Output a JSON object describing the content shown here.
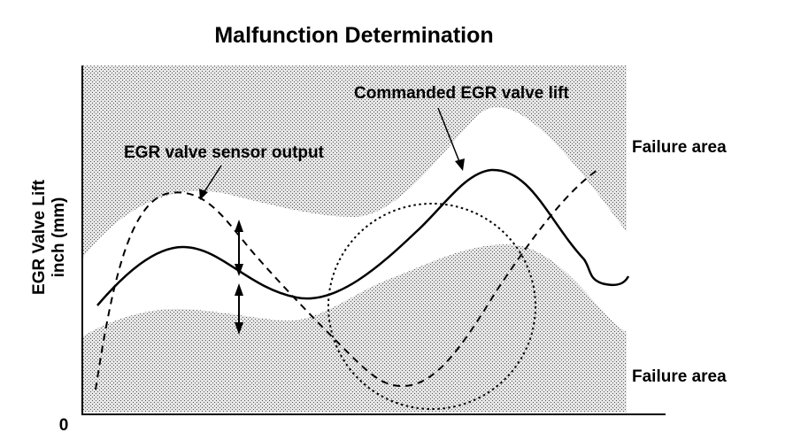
{
  "title": "Malfunction Determination",
  "y_axis": {
    "label_line1": "EGR Valve Lift",
    "label_line2": "inch (mm)",
    "origin_label": "0"
  },
  "labels": {
    "failure_upper": "Failure area",
    "failure_lower": "Failure area",
    "sensor_output": "EGR valve sensor output",
    "commanded_lift": "Commanded EGR valve lift"
  },
  "colors": {
    "failure_fill": "#d0d0d0",
    "band_fill": "#ffffff",
    "line": "#000000"
  }
}
